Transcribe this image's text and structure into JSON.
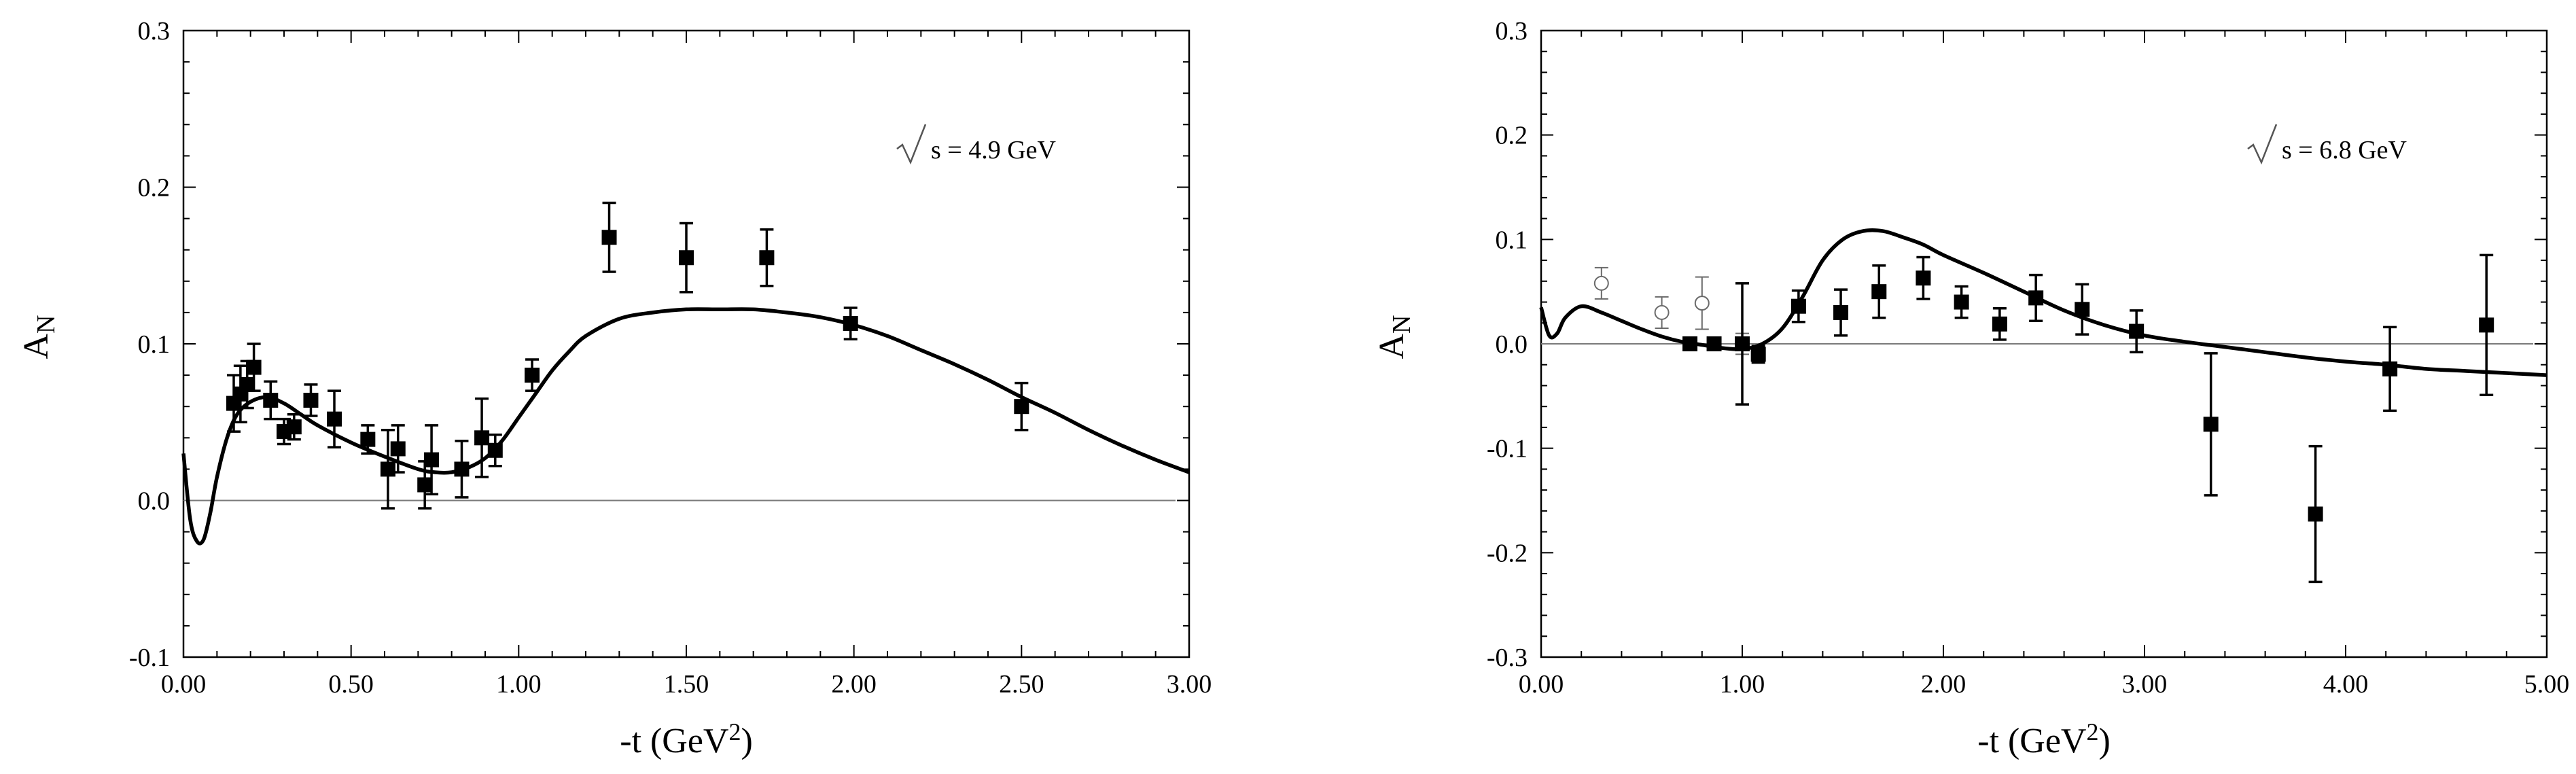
{
  "chart_data": [
    {
      "type": "scatter",
      "title": "",
      "annotation": "s = 4.9 GeV",
      "xlabel": "-t (GeV",
      "xlabel_sup": "2",
      "xlabel_close": ")",
      "ylabel": "A",
      "ylabel_sub": "N",
      "xlim": [
        0.0,
        3.0
      ],
      "ylim": [
        -0.1,
        0.3
      ],
      "xticks": [
        0.0,
        0.5,
        1.0,
        1.5,
        2.0,
        2.5,
        3.0
      ],
      "xtick_labels": [
        "0.00",
        "0.50",
        "1.00",
        "1.50",
        "2.00",
        "2.50",
        "3.00"
      ],
      "yticks": [
        -0.1,
        0.0,
        0.1,
        0.2,
        0.3
      ],
      "ytick_labels": [
        "-0.1",
        "0.0",
        "0.1",
        "0.2",
        "0.3"
      ],
      "reference_line": 0.0,
      "series": [
        {
          "name": "data",
          "marker": "filled-square",
          "points": [
            {
              "x": 0.15,
              "y": 0.062,
              "err": 0.018
            },
            {
              "x": 0.17,
              "y": 0.068,
              "err": 0.018
            },
            {
              "x": 0.19,
              "y": 0.074,
              "err": 0.015
            },
            {
              "x": 0.21,
              "y": 0.085,
              "err": 0.015
            },
            {
              "x": 0.26,
              "y": 0.064,
              "err": 0.012
            },
            {
              "x": 0.3,
              "y": 0.044,
              "err": 0.008
            },
            {
              "x": 0.33,
              "y": 0.047,
              "err": 0.008
            },
            {
              "x": 0.38,
              "y": 0.064,
              "err": 0.01
            },
            {
              "x": 0.45,
              "y": 0.052,
              "err": 0.018
            },
            {
              "x": 0.55,
              "y": 0.039,
              "err": 0.009
            },
            {
              "x": 0.61,
              "y": 0.02,
              "err": 0.025
            },
            {
              "x": 0.64,
              "y": 0.033,
              "err": 0.015
            },
            {
              "x": 0.72,
              "y": 0.01,
              "err": 0.015
            },
            {
              "x": 0.74,
              "y": 0.026,
              "err": 0.022
            },
            {
              "x": 0.83,
              "y": 0.02,
              "err": 0.018
            },
            {
              "x": 0.89,
              "y": 0.04,
              "err": 0.025
            },
            {
              "x": 0.93,
              "y": 0.032,
              "err": 0.01
            },
            {
              "x": 1.04,
              "y": 0.08,
              "err": 0.01
            },
            {
              "x": 1.27,
              "y": 0.168,
              "err": 0.022
            },
            {
              "x": 1.5,
              "y": 0.155,
              "err": 0.022
            },
            {
              "x": 1.74,
              "y": 0.155,
              "err": 0.018
            },
            {
              "x": 1.99,
              "y": 0.113,
              "err": 0.01
            },
            {
              "x": 2.5,
              "y": 0.06,
              "err": 0.015
            }
          ]
        },
        {
          "name": "model",
          "style": "line",
          "x": [
            0.0,
            0.02,
            0.04,
            0.06,
            0.08,
            0.1,
            0.13,
            0.16,
            0.2,
            0.25,
            0.3,
            0.35,
            0.4,
            0.5,
            0.6,
            0.7,
            0.75,
            0.8,
            0.85,
            0.9,
            0.95,
            1.0,
            1.05,
            1.1,
            1.15,
            1.2,
            1.3,
            1.4,
            1.5,
            1.6,
            1.7,
            1.8,
            1.9,
            2.0,
            2.1,
            2.2,
            2.3,
            2.4,
            2.5,
            2.6,
            2.7,
            2.8,
            2.9,
            3.0
          ],
          "y": [
            0.03,
            -0.012,
            -0.026,
            -0.025,
            -0.008,
            0.015,
            0.04,
            0.055,
            0.063,
            0.066,
            0.062,
            0.055,
            0.048,
            0.037,
            0.028,
            0.02,
            0.018,
            0.018,
            0.021,
            0.027,
            0.038,
            0.053,
            0.068,
            0.083,
            0.095,
            0.105,
            0.116,
            0.12,
            0.122,
            0.122,
            0.122,
            0.12,
            0.117,
            0.112,
            0.105,
            0.096,
            0.087,
            0.077,
            0.066,
            0.056,
            0.045,
            0.035,
            0.026,
            0.018
          ]
        }
      ]
    },
    {
      "type": "scatter",
      "title": "",
      "annotation": "s = 6.8 GeV",
      "xlabel": "-t (GeV",
      "xlabel_sup": "2",
      "xlabel_close": ")",
      "ylabel": "A",
      "ylabel_sub": "N",
      "xlim": [
        0.0,
        5.0
      ],
      "ylim": [
        -0.3,
        0.3
      ],
      "xticks": [
        0.0,
        1.0,
        2.0,
        3.0,
        4.0,
        5.0
      ],
      "xtick_labels": [
        "0.00",
        "1.00",
        "2.00",
        "3.00",
        "4.00",
        "5.00"
      ],
      "yticks": [
        -0.3,
        -0.2,
        -0.1,
        0.0,
        0.1,
        0.2,
        0.3
      ],
      "ytick_labels": [
        "-0.3",
        "-0.2",
        "-0.1",
        "0.0",
        "0.1",
        "0.2",
        "0.3"
      ],
      "reference_line": 0.0,
      "series": [
        {
          "name": "open data",
          "marker": "open-circle",
          "points": [
            {
              "x": 0.3,
              "y": 0.058,
              "err": 0.015
            },
            {
              "x": 0.6,
              "y": 0.03,
              "err": 0.015
            },
            {
              "x": 0.8,
              "y": 0.039,
              "err": 0.025
            },
            {
              "x": 1.0,
              "y": 0.0,
              "err": 0.01
            }
          ]
        },
        {
          "name": "filled data",
          "marker": "filled-square",
          "points": [
            {
              "x": 0.74,
              "y": 0.0,
              "err": 0.005
            },
            {
              "x": 0.86,
              "y": 0.0,
              "err": 0.005
            },
            {
              "x": 1.0,
              "y": 0.0,
              "err": 0.058
            },
            {
              "x": 1.08,
              "y": -0.01,
              "err": 0.008
            },
            {
              "x": 1.28,
              "y": 0.036,
              "err": 0.015
            },
            {
              "x": 1.49,
              "y": 0.03,
              "err": 0.022
            },
            {
              "x": 1.68,
              "y": 0.05,
              "err": 0.025
            },
            {
              "x": 1.9,
              "y": 0.063,
              "err": 0.02
            },
            {
              "x": 2.09,
              "y": 0.04,
              "err": 0.015
            },
            {
              "x": 2.28,
              "y": 0.019,
              "err": 0.015
            },
            {
              "x": 2.46,
              "y": 0.044,
              "err": 0.022
            },
            {
              "x": 2.69,
              "y": 0.033,
              "err": 0.024
            },
            {
              "x": 2.96,
              "y": 0.012,
              "err": 0.02
            },
            {
              "x": 3.33,
              "y": -0.077,
              "err": 0.068
            },
            {
              "x": 3.85,
              "y": -0.163,
              "err": 0.065
            },
            {
              "x": 4.22,
              "y": -0.024,
              "err": 0.04
            },
            {
              "x": 4.7,
              "y": 0.018,
              "err": 0.067
            }
          ]
        },
        {
          "name": "model",
          "style": "line",
          "x": [
            0.0,
            0.04,
            0.08,
            0.12,
            0.2,
            0.3,
            0.4,
            0.5,
            0.6,
            0.7,
            0.8,
            0.9,
            1.0,
            1.1,
            1.2,
            1.3,
            1.4,
            1.5,
            1.6,
            1.7,
            1.8,
            1.9,
            2.0,
            2.2,
            2.4,
            2.6,
            2.8,
            3.0,
            3.2,
            3.4,
            3.6,
            3.8,
            4.0,
            4.2,
            4.4,
            4.6,
            4.8,
            5.0
          ],
          "y": [
            0.035,
            0.008,
            0.01,
            0.025,
            0.036,
            0.03,
            0.022,
            0.014,
            0.007,
            0.002,
            -0.001,
            -0.004,
            -0.005,
            0.0,
            0.015,
            0.045,
            0.08,
            0.1,
            0.108,
            0.108,
            0.102,
            0.095,
            0.085,
            0.068,
            0.05,
            0.032,
            0.018,
            0.008,
            0.002,
            -0.003,
            -0.008,
            -0.013,
            -0.017,
            -0.02,
            -0.024,
            -0.026,
            -0.028,
            -0.03
          ]
        }
      ]
    }
  ]
}
